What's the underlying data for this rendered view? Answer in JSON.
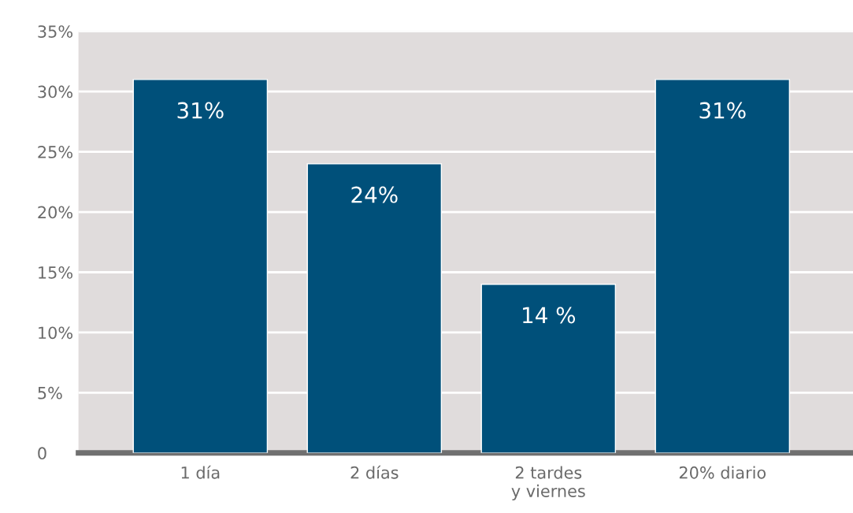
{
  "chart_data": {
    "type": "bar",
    "categories": [
      "1 día",
      "2 días",
      "2 tardes\ny viernes",
      "20% diario"
    ],
    "values": [
      31,
      24,
      14,
      31
    ],
    "color": "#00507a",
    "value_labels": [
      "31%",
      "24%",
      "14 %",
      "31%"
    ],
    "ylim": [
      0,
      35
    ],
    "yticks": [
      0,
      {
        "value": 5,
        "label": "5%"
      },
      {
        "value": 10,
        "label": "10%"
      },
      {
        "value": 15,
        "label": "15%"
      },
      {
        "value": 20,
        "label": "20%"
      },
      {
        "value": 25,
        "label": "25%"
      },
      {
        "value": 30,
        "label": "30%"
      },
      {
        "value": 35,
        "label": "35%"
      }
    ],
    "grid": "y"
  }
}
